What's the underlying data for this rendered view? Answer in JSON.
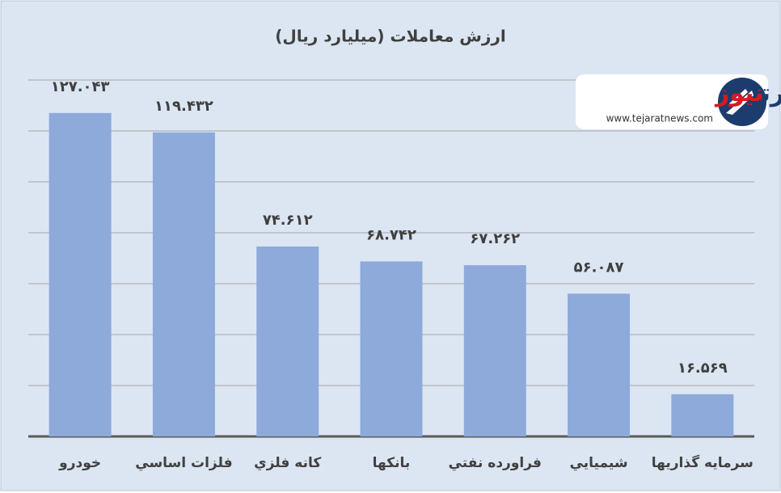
{
  "chart_data": {
    "type": "bar",
    "title": "ارزش معاملات (میلیارد ریال)",
    "categories": [
      "خودرو",
      "فلزات اساسي",
      "کانه فلزي",
      "بانکها",
      "فراورده نفتي",
      "شيميايي",
      "سرمايه گذاريها"
    ],
    "values": [
      127.043,
      119.432,
      74.612,
      68.742,
      67.262,
      56.087,
      16.569
    ],
    "value_labels": [
      "۱۲۷.۰۴۳",
      "۱۱۹.۴۳۲",
      "۷۴.۶۱۲",
      "۶۸.۷۴۲",
      "۶۷.۲۶۲",
      "۵۶.۰۸۷",
      "۱۶.۵۶۹"
    ],
    "color": "#8eaadb",
    "ylim": [
      0,
      140
    ],
    "yticks": [
      0,
      20,
      40,
      60,
      80,
      100,
      120,
      140
    ],
    "grid": true
  },
  "logo": {
    "brand_blue": "تجارت",
    "brand_red": "نیوز",
    "url": "www.tejaratnews.com"
  }
}
